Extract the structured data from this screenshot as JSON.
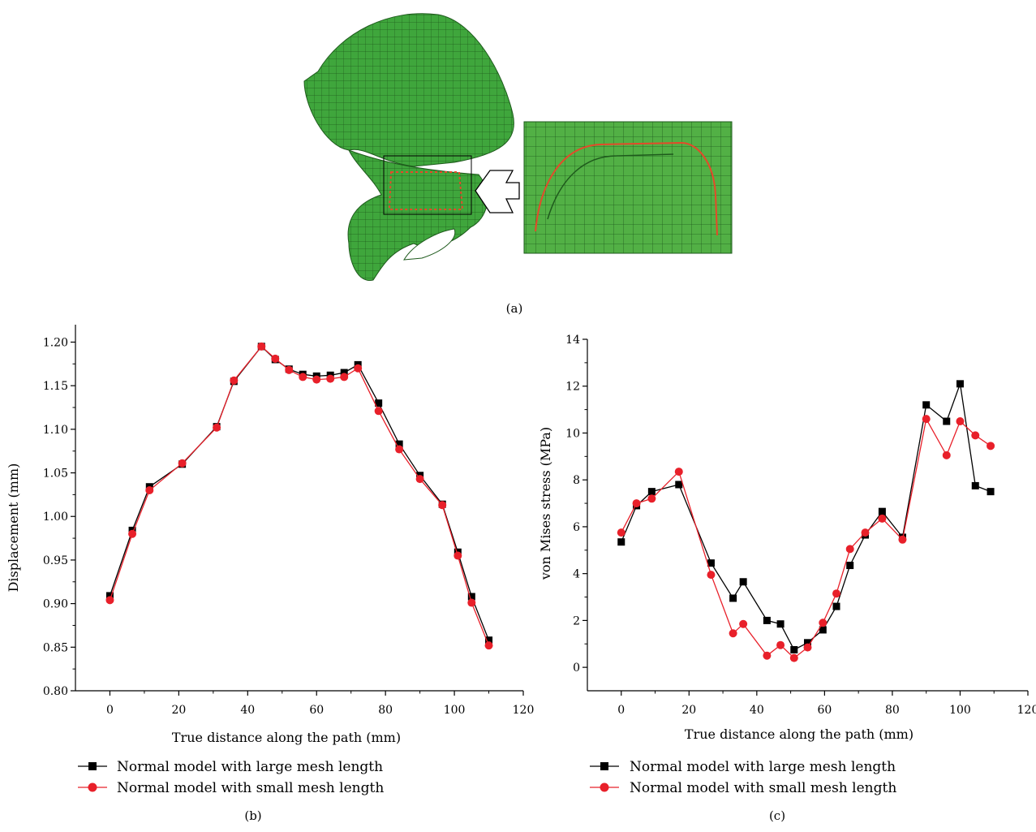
{
  "panel_labels": {
    "a": "(a)",
    "b": "(b)",
    "c": "(c)"
  },
  "chart_data": [
    {
      "type": "line",
      "panel": "(b)",
      "xlabel": "True distance along the path (mm)",
      "ylabel": "Displacement (mm)",
      "xlim": [
        -10,
        120
      ],
      "ylim": [
        0.8,
        1.22
      ],
      "xticks": [
        "0",
        "20",
        "40",
        "60",
        "80",
        "100",
        "120"
      ],
      "yticks": [
        "0.80",
        "0.85",
        "0.90",
        "0.95",
        "1.00",
        "1.05",
        "1.10",
        "1.15",
        "1.20"
      ],
      "legend": "below",
      "series": [
        {
          "name": "Normal model with large mesh length",
          "color": "#000000",
          "marker": "square",
          "x": [
            0,
            6.5,
            11.5,
            21,
            31,
            36,
            44,
            48,
            52,
            56,
            60,
            64,
            68,
            72,
            78,
            84,
            90,
            96.5,
            101,
            105,
            110
          ],
          "y": [
            0.909,
            0.984,
            1.034,
            1.06,
            1.103,
            1.155,
            1.195,
            1.18,
            1.169,
            1.163,
            1.161,
            1.162,
            1.165,
            1.174,
            1.13,
            1.083,
            1.047,
            1.014,
            0.959,
            0.908,
            0.858
          ]
        },
        {
          "name": "Normal model with small mesh length",
          "color": "#e8202a",
          "marker": "circle",
          "x": [
            0,
            6.5,
            11.5,
            21,
            31,
            36,
            44,
            48,
            52,
            56,
            60,
            64,
            68,
            72,
            78,
            84,
            90,
            96.5,
            101,
            105,
            110
          ],
          "y": [
            0.904,
            0.98,
            1.03,
            1.061,
            1.102,
            1.156,
            1.195,
            1.181,
            1.168,
            1.16,
            1.157,
            1.158,
            1.16,
            1.17,
            1.121,
            1.077,
            1.043,
            1.013,
            0.955,
            0.901,
            0.852
          ]
        }
      ]
    },
    {
      "type": "line",
      "panel": "(c)",
      "xlabel": "True distance along the path (mm)",
      "ylabel": "von Mises stress (MPa)",
      "xlim": [
        -10,
        120
      ],
      "ylim": [
        -1,
        14
      ],
      "xticks": [
        "0",
        "20",
        "40",
        "60",
        "80",
        "100",
        "120"
      ],
      "yticks": [
        "0",
        "2",
        "4",
        "6",
        "8",
        "10",
        "12",
        "14"
      ],
      "legend": "below",
      "series": [
        {
          "name": "Normal model with large mesh length",
          "color": "#000000",
          "marker": "square",
          "x": [
            0,
            4.5,
            9,
            17,
            26.5,
            33,
            36,
            43,
            47,
            51,
            55,
            59.5,
            63.5,
            67.5,
            72,
            77,
            83,
            90,
            96,
            100,
            104.5,
            109
          ],
          "y": [
            5.35,
            6.9,
            7.5,
            7.8,
            4.45,
            2.95,
            3.65,
            2.0,
            1.85,
            0.75,
            1.05,
            1.6,
            2.6,
            4.35,
            5.65,
            6.65,
            5.55,
            11.2,
            10.5,
            12.1,
            7.75,
            7.5
          ]
        },
        {
          "name": "Normal model with small mesh length",
          "color": "#e8202a",
          "marker": "circle",
          "x": [
            0,
            4.5,
            9,
            17,
            26.5,
            33,
            36,
            43,
            47,
            51,
            55,
            59.5,
            63.5,
            67.5,
            72,
            77,
            83,
            90,
            96,
            100,
            104.5,
            109
          ],
          "y": [
            5.75,
            7.0,
            7.2,
            8.35,
            3.95,
            1.45,
            1.85,
            0.5,
            0.95,
            0.4,
            0.85,
            1.9,
            3.15,
            5.05,
            5.75,
            6.35,
            5.45,
            10.6,
            9.05,
            10.5,
            9.9,
            9.45
          ]
        }
      ]
    }
  ]
}
